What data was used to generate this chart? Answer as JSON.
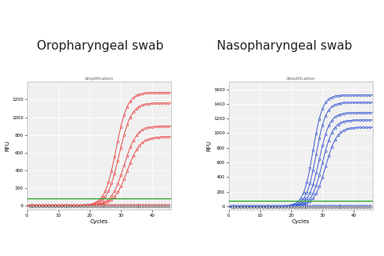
{
  "left_title": "Oropharyngeal swab",
  "right_title": "Nasopharyngeal swab",
  "subtitle": "Amplification",
  "xlabel": "Cycles",
  "ylabel": "RFU",
  "background": "#ffffff",
  "plot_bg": "#f0f0f0",
  "left": {
    "ylim": [
      -50,
      1400
    ],
    "yticks": [
      0,
      200,
      400,
      600,
      800,
      1000,
      1200
    ],
    "xticks": [
      0,
      10,
      20,
      30,
      40
    ],
    "xlim": [
      0,
      46
    ],
    "sigmoid_curves": [
      {
        "L": 1280,
        "k": 0.55,
        "x0": 28.5,
        "color": "#e83030"
      },
      {
        "L": 1160,
        "k": 0.52,
        "x0": 29.5,
        "color": "#e83030"
      },
      {
        "L": 900,
        "k": 0.5,
        "x0": 31.0,
        "color": "#e83030"
      },
      {
        "L": 780,
        "k": 0.48,
        "x0": 32.0,
        "color": "#e83030"
      }
    ],
    "threshold_y": 80,
    "threshold_color": "#33aa33",
    "flat_color": "#cc2222",
    "neg_color": "#555555"
  },
  "right": {
    "ylim": [
      -50,
      1700
    ],
    "yticks": [
      0,
      200,
      400,
      600,
      800,
      1000,
      1200,
      1400,
      1600
    ],
    "xticks": [
      0,
      10,
      20,
      30,
      40
    ],
    "xlim": [
      0,
      46
    ],
    "sigmoid_curves": [
      {
        "L": 1520,
        "k": 0.65,
        "x0": 27.0,
        "color": "#2244cc"
      },
      {
        "L": 1420,
        "k": 0.63,
        "x0": 28.0,
        "color": "#2244cc"
      },
      {
        "L": 1280,
        "k": 0.6,
        "x0": 29.0,
        "color": "#2244cc"
      },
      {
        "L": 1180,
        "k": 0.58,
        "x0": 30.0,
        "color": "#2244cc"
      },
      {
        "L": 1080,
        "k": 0.55,
        "x0": 31.0,
        "color": "#2244cc"
      }
    ],
    "threshold_y": 80,
    "threshold_color": "#33aa33",
    "flat_color": "#2244cc",
    "neg_color": "#555555"
  },
  "title_fontsize": 11,
  "subtitle_fontsize": 4,
  "tick_labelsize": 4,
  "axis_labelsize": 5
}
